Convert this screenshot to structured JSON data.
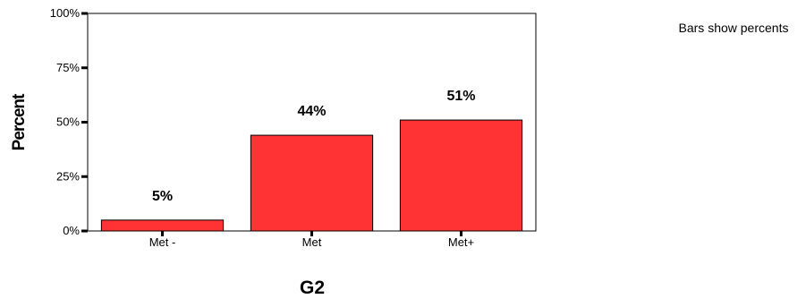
{
  "chart_data": {
    "type": "bar",
    "categories": [
      "Met -",
      "Met",
      "Met+"
    ],
    "values": [
      5,
      44,
      51
    ],
    "data_labels": [
      "5%",
      "44%",
      "51%"
    ],
    "xlabel": "G2",
    "ylabel": "Percent",
    "ylim": [
      0,
      100
    ],
    "yticks": [
      0,
      25,
      50,
      75,
      100
    ],
    "ytick_labels": [
      "0%",
      "25%",
      "50%",
      "75%",
      "100%"
    ],
    "grid": false,
    "bar_color": "#FF3333",
    "bar_edge_color": "#000000"
  },
  "note": "Bars show percents"
}
